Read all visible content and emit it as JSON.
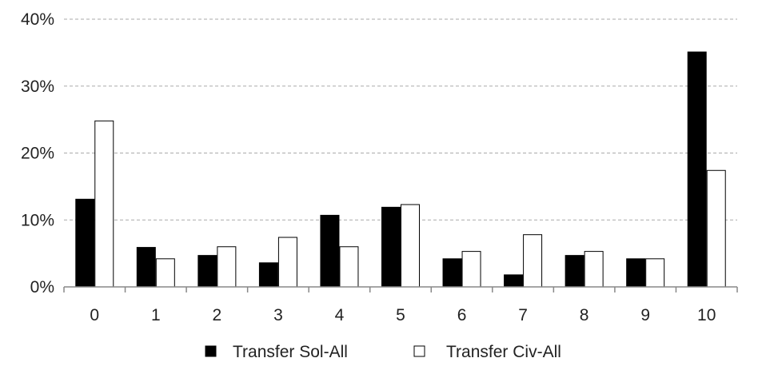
{
  "chart_data": {
    "type": "bar",
    "title": "",
    "xlabel": "",
    "ylabel": "",
    "categories": [
      "0",
      "1",
      "2",
      "3",
      "4",
      "5",
      "6",
      "7",
      "8",
      "9",
      "10"
    ],
    "series": [
      {
        "name": "Transfer Sol-All",
        "fill": "#000000",
        "stroke": "#000000",
        "values": [
          13.1,
          5.9,
          4.7,
          3.6,
          10.7,
          11.9,
          4.2,
          1.8,
          4.7,
          4.2,
          35.1
        ]
      },
      {
        "name": "Transfer Civ-All",
        "fill": "#ffffff",
        "stroke": "#000000",
        "values": [
          24.8,
          4.2,
          6.0,
          7.4,
          6.0,
          12.3,
          5.3,
          7.8,
          5.3,
          4.2,
          17.4
        ]
      }
    ],
    "ylim": [
      0,
      40
    ],
    "yticks": [
      0,
      10,
      20,
      30,
      40
    ],
    "ytick_labels": [
      "0%",
      "10%",
      "20%",
      "30%",
      "40%"
    ],
    "grid": true,
    "legend": "bottom-center",
    "colors": {
      "gridline": "#aaaaaa",
      "axis": "#888888",
      "bar_stroke": "#000000"
    }
  }
}
